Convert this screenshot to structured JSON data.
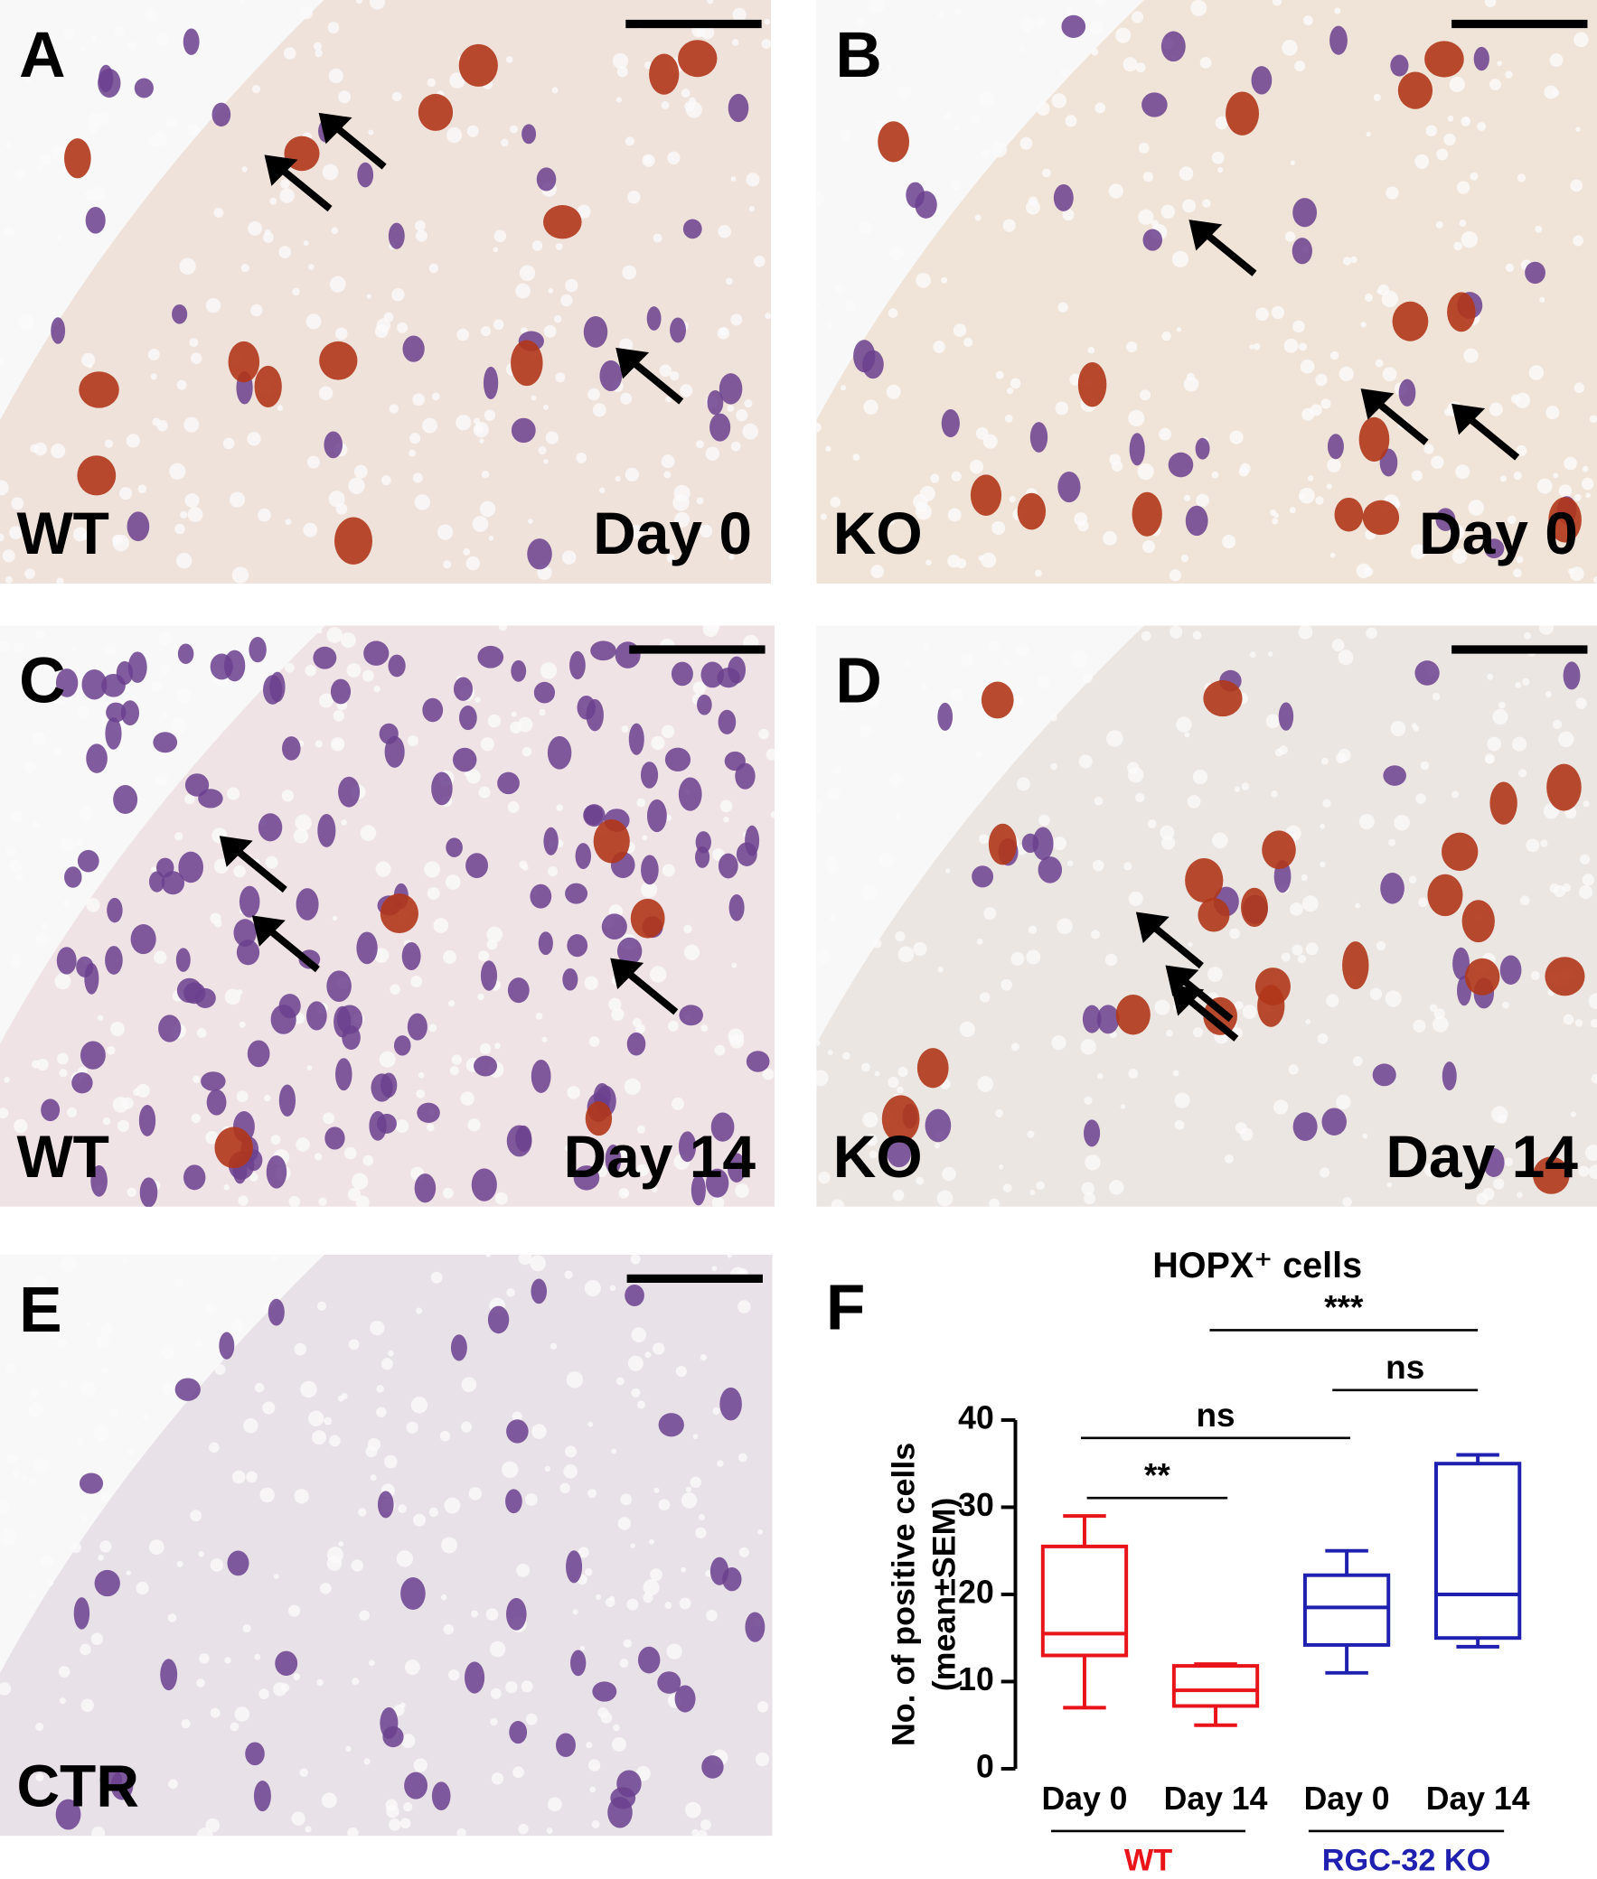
{
  "panels": [
    {
      "letter": "A",
      "left": "WT",
      "right": "Day 0"
    },
    {
      "letter": "B",
      "left": "KO",
      "right": "Day 0"
    },
    {
      "letter": "C",
      "left": "WT",
      "right": "Day 14"
    },
    {
      "letter": "D",
      "left": "KO",
      "right": "Day 14"
    },
    {
      "letter": "E",
      "left": "CTR"
    },
    {
      "letter": "F"
    }
  ],
  "chart_data": {
    "type": "box",
    "title": "HOPX⁺ cells",
    "y_label": [
      "No. of positive cells",
      "(mean±SEM)"
    ],
    "ylim": [
      0,
      40
    ],
    "yticks": [
      0,
      10,
      20,
      30,
      40
    ],
    "series": [
      {
        "name": "WT",
        "color": "#e8141a",
        "categories": [
          "Day 0",
          "Day 14"
        ],
        "min": [
          7,
          5
        ],
        "q1": [
          13,
          7.2
        ],
        "median": [
          15.5,
          9
        ],
        "q3": [
          25.5,
          11.8
        ],
        "max": [
          29,
          12
        ]
      },
      {
        "name": "RGC-32 KO",
        "color": "#2020b0",
        "categories": [
          "Day 0",
          "Day 14"
        ],
        "min": [
          11,
          14
        ],
        "q1": [
          14.2,
          15
        ],
        "median": [
          18.5,
          20
        ],
        "q3": [
          22.2,
          35
        ],
        "max": [
          25,
          36
        ]
      }
    ],
    "annotations": [
      "**",
      "ns",
      "ns",
      "***"
    ]
  }
}
